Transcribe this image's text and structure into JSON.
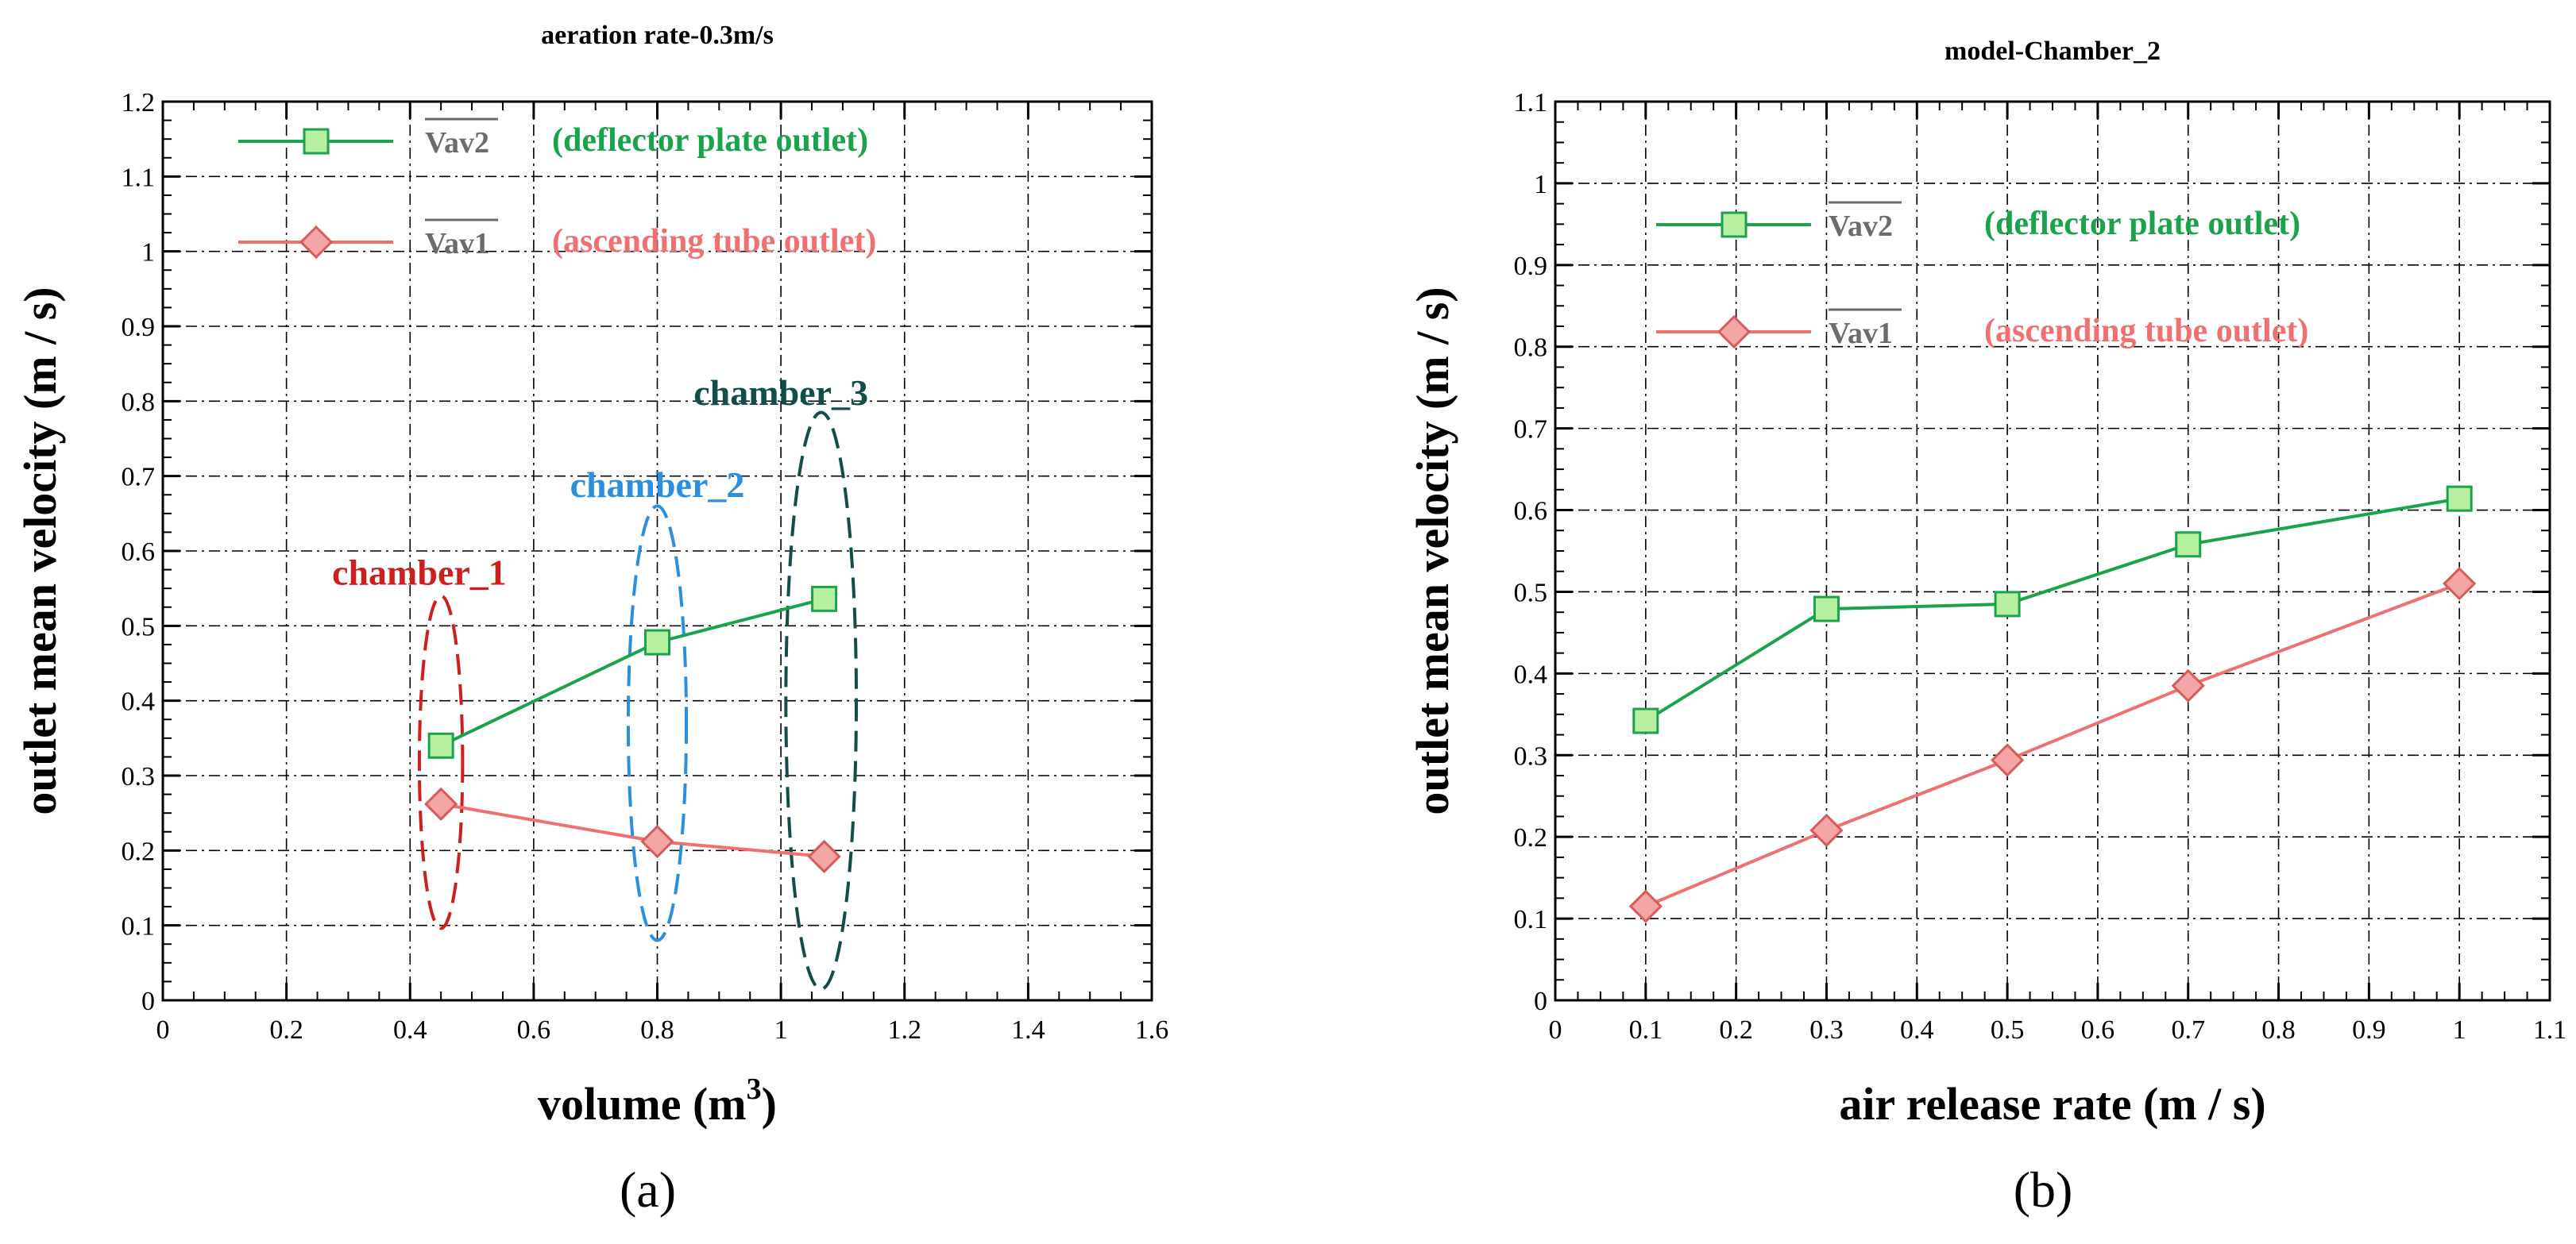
{
  "chart_data": [
    {
      "type": "line",
      "title": "aeration rate-0.3m/s",
      "panel_label": "(a)",
      "xlabel": "volume (m",
      "xlabel_sup": "3",
      "xlabel_end": ")",
      "ylabel": "outlet mean velocity (m / s)",
      "xlim": [
        0,
        1.6
      ],
      "ylim": [
        0,
        1.2
      ],
      "xticks": [
        0,
        0.2,
        0.4,
        0.6,
        0.8,
        1,
        1.2,
        1.4,
        1.6
      ],
      "xtick_labels": [
        "0",
        "0.2",
        "0.4",
        "0.6",
        "0.8",
        "1",
        "1.2",
        "1.4",
        "1.6"
      ],
      "yticks": [
        0,
        0.1,
        0.2,
        0.3,
        0.4,
        0.5,
        0.6,
        0.7,
        0.8,
        0.9,
        1,
        1.1,
        1.2
      ],
      "ytick_labels": [
        "0",
        "0.1",
        "0.2",
        "0.3",
        "0.4",
        "0.5",
        "0.6",
        "0.7",
        "0.8",
        "0.9",
        "1",
        "1.1",
        "1.2"
      ],
      "grid": true,
      "series": [
        {
          "name": "Vav2",
          "description": "(deflector plate outlet)",
          "color": "#1aa34a",
          "fill": "#b7f0a0",
          "marker": "square",
          "x": [
            0.45,
            0.8,
            1.07
          ],
          "y": [
            0.34,
            0.478,
            0.536
          ]
        },
        {
          "name": "Vav1",
          "description": "(ascending tube outlet)",
          "color": "#f07070",
          "fill": "#f4a6a6",
          "marker": "diamond",
          "x": [
            0.45,
            0.8,
            1.07
          ],
          "y": [
            0.262,
            0.212,
            0.192
          ]
        }
      ],
      "annotations": [
        {
          "text": "chamber_1",
          "color": "#cc1f1f",
          "cx": 0.45,
          "cy": 0.318,
          "rx": 0.035,
          "ry": 0.222,
          "label_x": 0.415,
          "label_y": 0.555
        },
        {
          "text": "chamber_2",
          "color": "#2b8fe0",
          "cx": 0.8,
          "cy": 0.37,
          "rx": 0.047,
          "ry": 0.29,
          "label_x": 0.8,
          "label_y": 0.672
        },
        {
          "text": "chamber_3",
          "color": "#124d4a",
          "cx": 1.065,
          "cy": 0.4,
          "rx": 0.057,
          "ry": 0.385,
          "label_x": 1.0,
          "label_y": 0.795
        }
      ]
    },
    {
      "type": "line",
      "title": "model-Chamber_2",
      "panel_label": "(b)",
      "xlabel": "air release rate (m / s)",
      "ylabel": "outlet mean velocity (m / s)",
      "xlim": [
        0,
        1.1
      ],
      "ylim": [
        0,
        1.1
      ],
      "xticks": [
        0,
        0.1,
        0.2,
        0.3,
        0.4,
        0.5,
        0.6,
        0.7,
        0.8,
        0.9,
        1,
        1.1
      ],
      "xtick_labels": [
        "0",
        "0.1",
        "0.2",
        "0.3",
        "0.4",
        "0.5",
        "0.6",
        "0.7",
        "0.8",
        "0.9",
        "1",
        "1.1"
      ],
      "yticks": [
        0,
        0.1,
        0.2,
        0.3,
        0.4,
        0.5,
        0.6,
        0.7,
        0.8,
        0.9,
        1,
        1.1
      ],
      "ytick_labels": [
        "0",
        "0.1",
        "0.2",
        "0.3",
        "0.4",
        "0.5",
        "0.6",
        "0.7",
        "0.8",
        "0.9",
        "1",
        "1.1"
      ],
      "grid": true,
      "series": [
        {
          "name": "Vav2",
          "description": "(deflector plate outlet)",
          "color": "#1aa34a",
          "fill": "#b7f0a0",
          "marker": "square",
          "x": [
            0.1,
            0.3,
            0.5,
            0.7,
            1.0
          ],
          "y": [
            0.342,
            0.479,
            0.485,
            0.558,
            0.614
          ]
        },
        {
          "name": "Vav1",
          "description": "(ascending tube outlet)",
          "color": "#f07070",
          "fill": "#f4a6a6",
          "marker": "diamond",
          "x": [
            0.1,
            0.3,
            0.5,
            0.7,
            1.0
          ],
          "y": [
            0.115,
            0.208,
            0.294,
            0.385,
            0.51
          ]
        }
      ],
      "annotations": []
    }
  ]
}
